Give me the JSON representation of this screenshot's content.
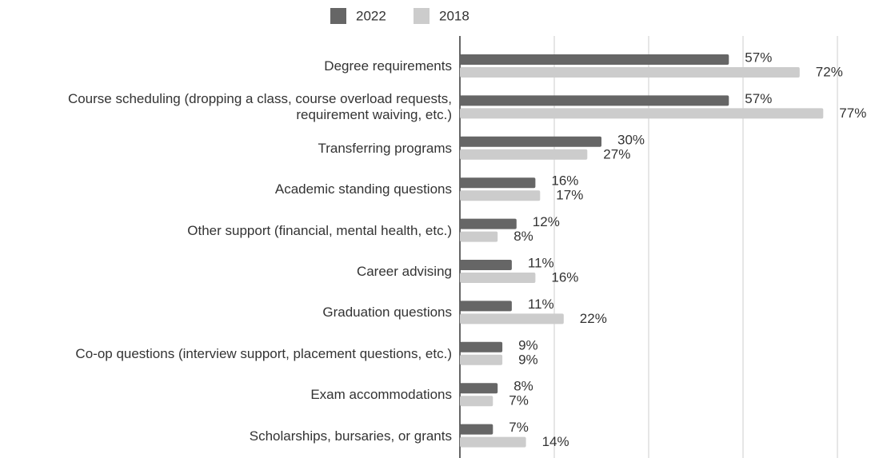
{
  "chart_data": {
    "type": "hbar",
    "categories": [
      "Degree requirements",
      "Course scheduling (dropping a class, course overload requests, requirement waiving, etc.)",
      "Transferring programs",
      "Academic standing questions",
      "Other support (financial, mental health, etc.)",
      "Career advising",
      "Graduation questions",
      "Co-op questions (interview support, placement questions, etc.)",
      "Exam accommodations",
      "Scholarships, bursaries, or grants"
    ],
    "series": [
      {
        "name": "2022",
        "color": "#666666",
        "values": [
          57,
          57,
          30,
          16,
          12,
          11,
          11,
          9,
          8,
          7
        ],
        "value_labels": [
          "57%",
          "57%",
          "30%",
          "16%",
          "12%",
          "11%",
          "11%",
          "9%",
          "8%",
          "7%"
        ]
      },
      {
        "name": "2018",
        "color": "#cccccc",
        "values": [
          72,
          77,
          27,
          17,
          8,
          16,
          22,
          9,
          7,
          14
        ],
        "value_labels": [
          "72%",
          "77%",
          "27%",
          "17%",
          "8%",
          "16%",
          "22%",
          "9%",
          "7%",
          "14%"
        ]
      }
    ],
    "xlim": [
      0,
      80
    ],
    "xticks": [
      0,
      20,
      40,
      60,
      80
    ],
    "grid": true,
    "legend": "top"
  }
}
